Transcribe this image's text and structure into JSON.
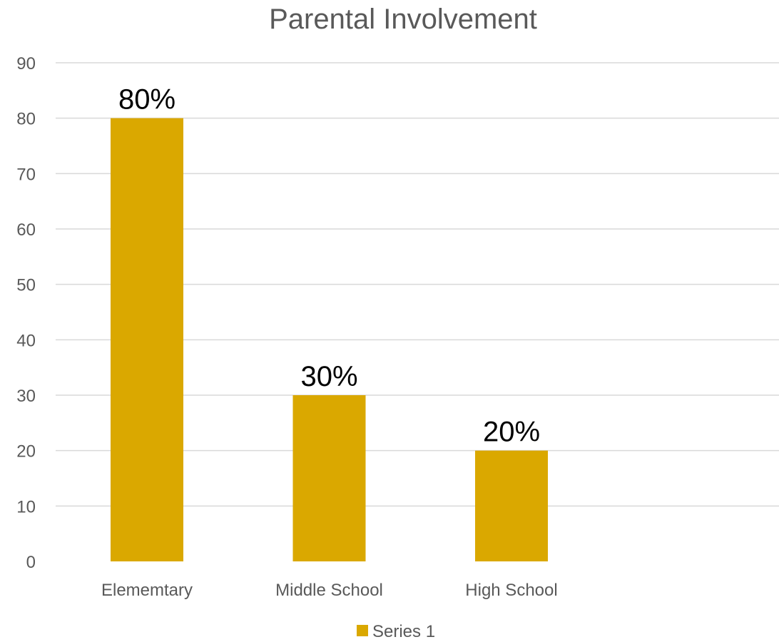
{
  "chart_data": {
    "type": "bar",
    "title": "Parental Involvement",
    "categories": [
      "Elememtary",
      "Middle School",
      "High School"
    ],
    "series": [
      {
        "name": "Series 1",
        "values": [
          80,
          30,
          20
        ],
        "data_labels": [
          "80%",
          "30%",
          "20%"
        ],
        "color": "#DAA800"
      }
    ],
    "xlabel": "",
    "ylabel": "",
    "ylim": [
      0,
      90
    ],
    "yticks": [
      0,
      10,
      20,
      30,
      40,
      50,
      60,
      70,
      80,
      90
    ],
    "grid": true,
    "legend": "bottom"
  }
}
